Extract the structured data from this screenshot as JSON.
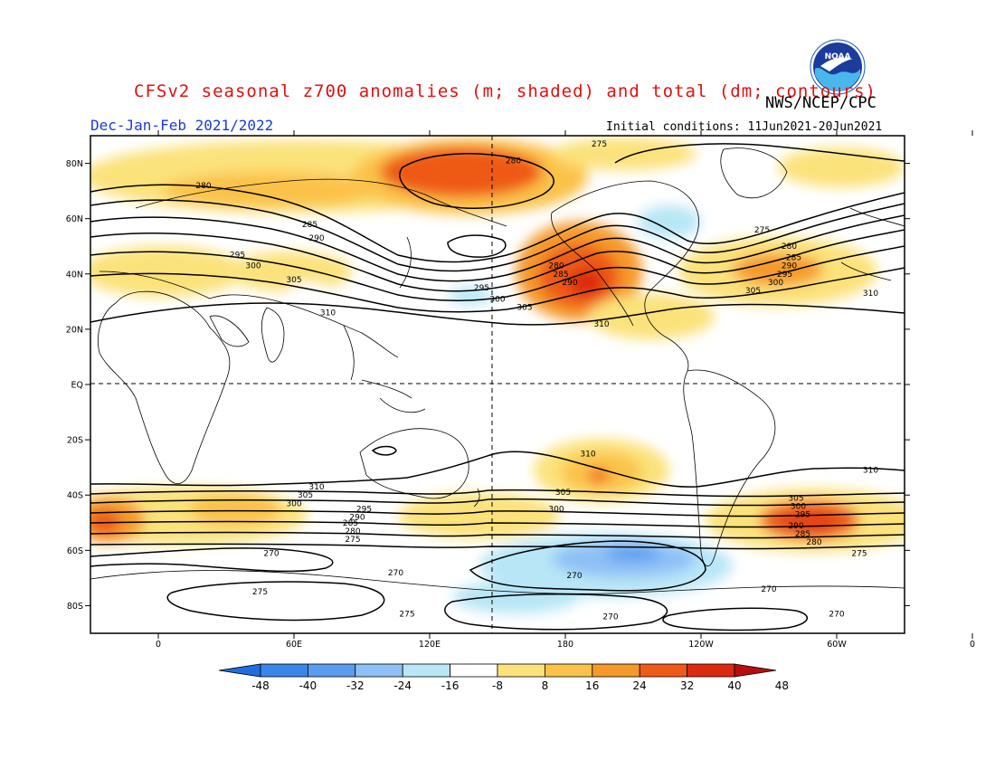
{
  "header": {
    "title": "CFSv2 seasonal z700 anomalies (m; shaded) and total (dm; contours)",
    "agency": "NWS/NCEP/CPC",
    "season": "Dec-Jan-Feb 2021/2022",
    "initial_conditions": "Initial conditions: 11Jun2021-20Jun2021",
    "logo_text": "NOAA"
  },
  "map": {
    "lat_ticks": [
      "80N",
      "60N",
      "40N",
      "20N",
      "EQ",
      "20S",
      "40S",
      "60S",
      "80S"
    ],
    "lon_ticks": [
      "0",
      "60E",
      "120E",
      "180",
      "120W",
      "60W",
      "0"
    ],
    "contour_labels": [
      {
        "text": "275",
        "lon": 195,
        "lat": 87
      },
      {
        "text": "280",
        "lon": 157,
        "lat": 81
      },
      {
        "text": "280",
        "lon": 20,
        "lat": 72
      },
      {
        "text": "285",
        "lon": 67,
        "lat": 58
      },
      {
        "text": "290",
        "lon": 70,
        "lat": 53
      },
      {
        "text": "295",
        "lon": 35,
        "lat": 47
      },
      {
        "text": "300",
        "lon": 42,
        "lat": 43
      },
      {
        "text": "305",
        "lon": 60,
        "lat": 38
      },
      {
        "text": "310",
        "lon": 75,
        "lat": 26
      },
      {
        "text": "295",
        "lon": 143,
        "lat": 35
      },
      {
        "text": "300",
        "lon": 150,
        "lat": 31
      },
      {
        "text": "305",
        "lon": 162,
        "lat": 28
      },
      {
        "text": "310",
        "lon": 196,
        "lat": 22
      },
      {
        "text": "280",
        "lon": 176,
        "lat": 43
      },
      {
        "text": "285",
        "lon": 178,
        "lat": 40
      },
      {
        "text": "290",
        "lon": 182,
        "lat": 37
      },
      {
        "text": "275",
        "lon": 267,
        "lat": 56
      },
      {
        "text": "280",
        "lon": 279,
        "lat": 50
      },
      {
        "text": "285",
        "lon": 281,
        "lat": 46
      },
      {
        "text": "290",
        "lon": 279,
        "lat": 43
      },
      {
        "text": "295",
        "lon": 277,
        "lat": 40
      },
      {
        "text": "300",
        "lon": 273,
        "lat": 37
      },
      {
        "text": "305",
        "lon": 263,
        "lat": 34
      },
      {
        "text": "310",
        "lon": 315,
        "lat": 33
      },
      {
        "text": "310",
        "lon": 190,
        "lat": -25
      },
      {
        "text": "310",
        "lon": 315,
        "lat": -31
      },
      {
        "text": "310",
        "lon": 70,
        "lat": -37
      },
      {
        "text": "305",
        "lon": 65,
        "lat": -40
      },
      {
        "text": "300",
        "lon": 60,
        "lat": -43
      },
      {
        "text": "295",
        "lon": 91,
        "lat": -45
      },
      {
        "text": "290",
        "lon": 88,
        "lat": -48
      },
      {
        "text": "285",
        "lon": 85,
        "lat": -50
      },
      {
        "text": "280",
        "lon": 86,
        "lat": -53
      },
      {
        "text": "275",
        "lon": 86,
        "lat": -56
      },
      {
        "text": "305",
        "lon": 179,
        "lat": -39
      },
      {
        "text": "300",
        "lon": 176,
        "lat": -45
      },
      {
        "text": "305",
        "lon": 282,
        "lat": -41
      },
      {
        "text": "300",
        "lon": 283,
        "lat": -44
      },
      {
        "text": "295",
        "lon": 285,
        "lat": -47
      },
      {
        "text": "290",
        "lon": 282,
        "lat": -51
      },
      {
        "text": "285",
        "lon": 285,
        "lat": -54
      },
      {
        "text": "280",
        "lon": 290,
        "lat": -57
      },
      {
        "text": "275",
        "lon": 310,
        "lat": -61
      },
      {
        "text": "270",
        "lon": 50,
        "lat": -61
      },
      {
        "text": "270",
        "lon": 105,
        "lat": -68
      },
      {
        "text": "275",
        "lon": 45,
        "lat": -75
      },
      {
        "text": "275",
        "lon": 110,
        "lat": -83
      },
      {
        "text": "270",
        "lon": 184,
        "lat": -69
      },
      {
        "text": "270",
        "lon": 270,
        "lat": -74
      },
      {
        "text": "270",
        "lon": 200,
        "lat": -84
      },
      {
        "text": "270",
        "lon": 300,
        "lat": -83
      }
    ]
  },
  "colorbar": {
    "labels": [
      "-48",
      "-40",
      "-32",
      "-24",
      "-16",
      "-8",
      "8",
      "16",
      "24",
      "32",
      "40",
      "48"
    ],
    "colors": [
      "#1e6ee0",
      "#3a86ea",
      "#5a9cf0",
      "#8ec0f6",
      "#b8e6f6",
      "#ffffff",
      "#fbe27a",
      "#fbc24a",
      "#f59a2a",
      "#ee5a18",
      "#dc2a10",
      "#b80e0e"
    ]
  }
}
